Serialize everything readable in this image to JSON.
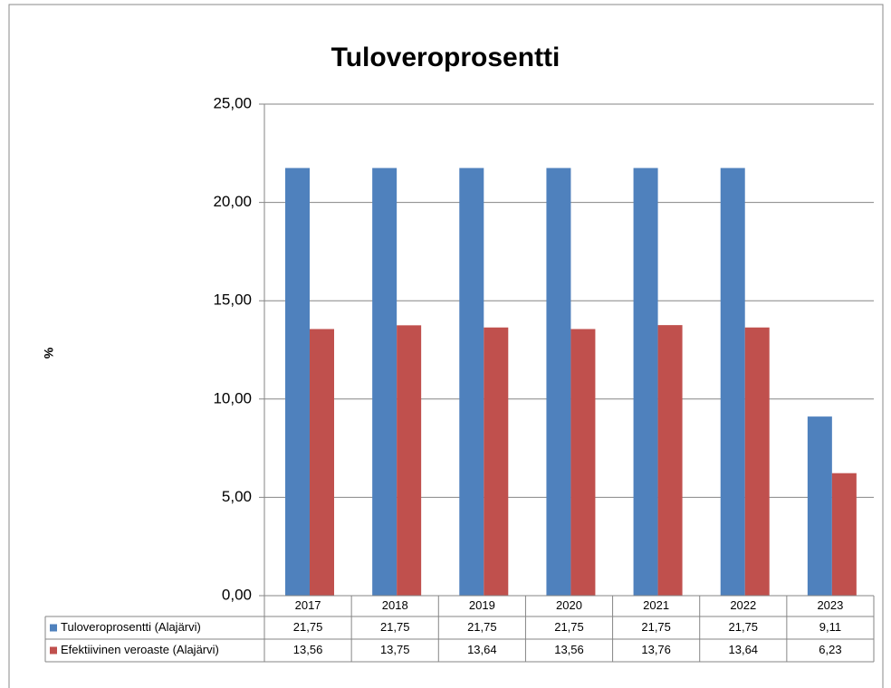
{
  "chart_data": {
    "type": "bar",
    "title": "Tuloveroprosentti",
    "y_label": "%",
    "categories": [
      "2017",
      "2018",
      "2019",
      "2020",
      "2021",
      "2022",
      "2023"
    ],
    "series": [
      {
        "name": "Tuloveroprosentti (Alajärvi)",
        "color": "#4f81bd",
        "values": [
          21.75,
          21.75,
          21.75,
          21.75,
          21.75,
          21.75,
          9.11
        ],
        "value_labels": [
          "21,75",
          "21,75",
          "21,75",
          "21,75",
          "21,75",
          "21,75",
          "9,11"
        ]
      },
      {
        "name": "Efektiivinen veroaste (Alajärvi)",
        "color": "#c0504d",
        "values": [
          13.56,
          13.75,
          13.64,
          13.56,
          13.76,
          13.64,
          6.23
        ],
        "value_labels": [
          "13,56",
          "13,75",
          "13,64",
          "13,56",
          "13,76",
          "13,64",
          "6,23"
        ]
      }
    ],
    "ylim": [
      0,
      25
    ],
    "yticks": [
      {
        "value": 0,
        "label": "0,00"
      },
      {
        "value": 5,
        "label": "5,00"
      },
      {
        "value": 10,
        "label": "10,00"
      },
      {
        "value": 15,
        "label": "15,00"
      },
      {
        "value": 20,
        "label": "20,00"
      },
      {
        "value": 25,
        "label": "25,00"
      }
    ],
    "grid": true,
    "legend": "table"
  }
}
